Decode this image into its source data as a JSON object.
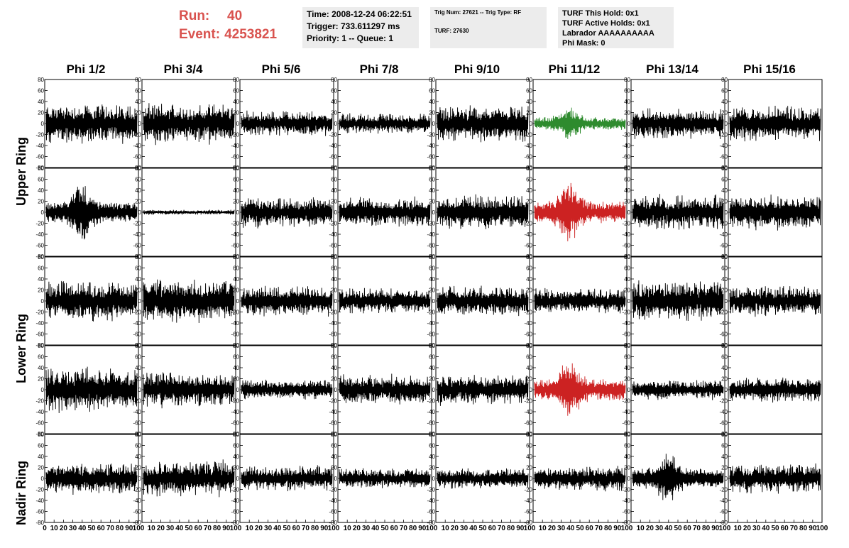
{
  "header": {
    "run_label": "Run:",
    "run_value": "40",
    "event_label": "Event:",
    "event_value": "4253821",
    "time_line": "Time: 2008-12-24 06:22:51",
    "trigger_line": "Trigger: 733.611297 ms",
    "priority_line": "Priority: 1 -- Queue: 1",
    "trig_line": "Trig Num: 27621 -- Trig Type: RF",
    "turf_line": "TURF: 27630",
    "turf_hold_line": "TURF This Hold: 0x1",
    "turf_active_line": "TURF Active Holds: 0x1",
    "labrador_line": "Labrador AAAAAAAAAA",
    "phimask_line": "Phi Mask: 0"
  },
  "columns": [
    "Phi 1/2",
    "Phi 3/4",
    "Phi 5/6",
    "Phi 7/8",
    "Phi 9/10",
    "Phi 11/12",
    "Phi 13/14",
    "Phi 15/16"
  ],
  "rings": [
    "Upper Ring",
    "Lower Ring",
    "Nadir Ring"
  ],
  "colors": {
    "green": "#2e8b2e",
    "red": "#cc2222",
    "black": "#000000",
    "header_red": "#d9534f"
  },
  "chart_data": {
    "type": "line",
    "ylim": [
      -80,
      80
    ],
    "xlim": [
      0,
      100
    ],
    "yticks": [
      "80",
      "60",
      "40",
      "20",
      "0",
      "-20",
      "-40",
      "-60",
      "-80"
    ],
    "xticks": [
      "0",
      "10",
      "20",
      "30",
      "40",
      "50",
      "60",
      "70",
      "80",
      "90",
      "100"
    ],
    "trace_colors": [
      [
        "black",
        "black",
        "black",
        "black",
        "black",
        "green",
        "black",
        "black"
      ],
      [
        "black",
        "black",
        "black",
        "black",
        "black",
        "red",
        "black",
        "black"
      ],
      [
        "black",
        "black",
        "black",
        "black",
        "black",
        "black",
        "black",
        "black"
      ],
      [
        "black",
        "black",
        "black",
        "black",
        "black",
        "red",
        "black",
        "black"
      ],
      [
        "black",
        "black",
        "black",
        "black",
        "black",
        "black",
        "black",
        "black"
      ]
    ],
    "trace_amplitude": [
      [
        40,
        40,
        25,
        20,
        35,
        35,
        30,
        35
      ],
      [
        60,
        5,
        30,
        30,
        35,
        60,
        35,
        35
      ],
      [
        40,
        45,
        30,
        25,
        30,
        25,
        40,
        30
      ],
      [
        45,
        35,
        20,
        30,
        30,
        60,
        20,
        25
      ],
      [
        30,
        35,
        25,
        20,
        20,
        25,
        55,
        30
      ]
    ]
  }
}
